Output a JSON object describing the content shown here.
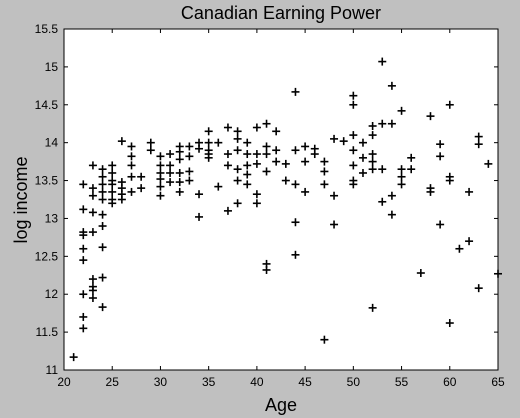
{
  "chart_data": {
    "type": "scatter",
    "title": "Canadian Earning Power",
    "xlabel": "Age",
    "ylabel": "log income",
    "xlim": [
      20,
      65
    ],
    "ylim": [
      11,
      15.5
    ],
    "xticks": [
      "20",
      "25",
      "30",
      "35",
      "40",
      "45",
      "50",
      "55",
      "60",
      "65"
    ],
    "yticks": [
      "11",
      "11.5",
      "12",
      "12.5",
      "13",
      "13.5",
      "14",
      "14.5",
      "15",
      "15.5"
    ],
    "marker": "+",
    "background": "#c0c0c0",
    "plot_background": "#ffffff",
    "marker_color": "#000000",
    "grid": false,
    "points": [
      {
        "x": 21,
        "y": 11.17
      },
      {
        "x": 22,
        "y": 11.55
      },
      {
        "x": 22,
        "y": 11.7
      },
      {
        "x": 22,
        "y": 12.0
      },
      {
        "x": 22,
        "y": 12.45
      },
      {
        "x": 22,
        "y": 12.6
      },
      {
        "x": 22,
        "y": 12.78
      },
      {
        "x": 22,
        "y": 12.82
      },
      {
        "x": 22,
        "y": 13.12
      },
      {
        "x": 22,
        "y": 13.45
      },
      {
        "x": 23,
        "y": 11.95
      },
      {
        "x": 23,
        "y": 12.05
      },
      {
        "x": 23,
        "y": 12.1
      },
      {
        "x": 23,
        "y": 12.2
      },
      {
        "x": 23,
        "y": 12.82
      },
      {
        "x": 23,
        "y": 13.08
      },
      {
        "x": 23,
        "y": 13.3
      },
      {
        "x": 23,
        "y": 13.4
      },
      {
        "x": 23,
        "y": 13.7
      },
      {
        "x": 24,
        "y": 11.83
      },
      {
        "x": 24,
        "y": 12.22
      },
      {
        "x": 24,
        "y": 12.62
      },
      {
        "x": 24,
        "y": 12.9
      },
      {
        "x": 24,
        "y": 13.05
      },
      {
        "x": 24,
        "y": 13.25
      },
      {
        "x": 24,
        "y": 13.35
      },
      {
        "x": 24,
        "y": 13.45
      },
      {
        "x": 24,
        "y": 13.55
      },
      {
        "x": 24,
        "y": 13.65
      },
      {
        "x": 25,
        "y": 13.2
      },
      {
        "x": 25,
        "y": 13.25
      },
      {
        "x": 25,
        "y": 13.35
      },
      {
        "x": 25,
        "y": 13.45
      },
      {
        "x": 25,
        "y": 13.5
      },
      {
        "x": 25,
        "y": 13.6
      },
      {
        "x": 25,
        "y": 13.7
      },
      {
        "x": 26,
        "y": 13.25
      },
      {
        "x": 26,
        "y": 13.32
      },
      {
        "x": 26,
        "y": 13.4
      },
      {
        "x": 26,
        "y": 13.48
      },
      {
        "x": 26,
        "y": 14.02
      },
      {
        "x": 27,
        "y": 13.35
      },
      {
        "x": 27,
        "y": 13.55
      },
      {
        "x": 27,
        "y": 13.7
      },
      {
        "x": 27,
        "y": 13.82
      },
      {
        "x": 27,
        "y": 13.95
      },
      {
        "x": 28,
        "y": 13.4
      },
      {
        "x": 28,
        "y": 13.55
      },
      {
        "x": 29,
        "y": 13.9
      },
      {
        "x": 29,
        "y": 14.0
      },
      {
        "x": 30,
        "y": 13.3
      },
      {
        "x": 30,
        "y": 13.42
      },
      {
        "x": 30,
        "y": 13.52
      },
      {
        "x": 30,
        "y": 13.6
      },
      {
        "x": 30,
        "y": 13.7
      },
      {
        "x": 30,
        "y": 13.82
      },
      {
        "x": 31,
        "y": 13.48
      },
      {
        "x": 31,
        "y": 13.6
      },
      {
        "x": 31,
        "y": 13.7
      },
      {
        "x": 31,
        "y": 13.85
      },
      {
        "x": 32,
        "y": 13.35
      },
      {
        "x": 32,
        "y": 13.48
      },
      {
        "x": 32,
        "y": 13.6
      },
      {
        "x": 32,
        "y": 13.78
      },
      {
        "x": 32,
        "y": 13.88
      },
      {
        "x": 32,
        "y": 13.95
      },
      {
        "x": 33,
        "y": 13.5
      },
      {
        "x": 33,
        "y": 13.62
      },
      {
        "x": 33,
        "y": 13.82
      },
      {
        "x": 33,
        "y": 13.95
      },
      {
        "x": 34,
        "y": 13.02
      },
      {
        "x": 34,
        "y": 13.32
      },
      {
        "x": 34,
        "y": 13.92
      },
      {
        "x": 34,
        "y": 14.0
      },
      {
        "x": 35,
        "y": 13.8
      },
      {
        "x": 35,
        "y": 13.85
      },
      {
        "x": 35,
        "y": 13.9
      },
      {
        "x": 35,
        "y": 14.0
      },
      {
        "x": 35,
        "y": 14.15
      },
      {
        "x": 36,
        "y": 13.42
      },
      {
        "x": 36,
        "y": 14.0
      },
      {
        "x": 37,
        "y": 13.1
      },
      {
        "x": 37,
        "y": 13.7
      },
      {
        "x": 37,
        "y": 13.85
      },
      {
        "x": 37,
        "y": 14.2
      },
      {
        "x": 38,
        "y": 13.2
      },
      {
        "x": 38,
        "y": 13.5
      },
      {
        "x": 38,
        "y": 13.65
      },
      {
        "x": 38,
        "y": 13.9
      },
      {
        "x": 38,
        "y": 14.05
      },
      {
        "x": 38,
        "y": 14.15
      },
      {
        "x": 39,
        "y": 13.45
      },
      {
        "x": 39,
        "y": 13.58
      },
      {
        "x": 39,
        "y": 13.7
      },
      {
        "x": 39,
        "y": 13.85
      },
      {
        "x": 39,
        "y": 14.0
      },
      {
        "x": 40,
        "y": 13.2
      },
      {
        "x": 40,
        "y": 13.32
      },
      {
        "x": 40,
        "y": 13.72
      },
      {
        "x": 40,
        "y": 13.85
      },
      {
        "x": 40,
        "y": 14.2
      },
      {
        "x": 41,
        "y": 12.32
      },
      {
        "x": 41,
        "y": 12.4
      },
      {
        "x": 41,
        "y": 13.62
      },
      {
        "x": 41,
        "y": 13.85
      },
      {
        "x": 41,
        "y": 13.95
      },
      {
        "x": 41,
        "y": 14.25
      },
      {
        "x": 42,
        "y": 13.75
      },
      {
        "x": 42,
        "y": 13.9
      },
      {
        "x": 42,
        "y": 14.15
      },
      {
        "x": 43,
        "y": 13.5
      },
      {
        "x": 43,
        "y": 13.72
      },
      {
        "x": 44,
        "y": 12.52
      },
      {
        "x": 44,
        "y": 12.95
      },
      {
        "x": 44,
        "y": 13.45
      },
      {
        "x": 44,
        "y": 13.9
      },
      {
        "x": 44,
        "y": 14.67
      },
      {
        "x": 45,
        "y": 13.35
      },
      {
        "x": 45,
        "y": 13.75
      },
      {
        "x": 45,
        "y": 13.95
      },
      {
        "x": 46,
        "y": 13.85
      },
      {
        "x": 46,
        "y": 13.92
      },
      {
        "x": 47,
        "y": 11.4
      },
      {
        "x": 47,
        "y": 13.45
      },
      {
        "x": 47,
        "y": 13.62
      },
      {
        "x": 47,
        "y": 13.75
      },
      {
        "x": 48,
        "y": 12.92
      },
      {
        "x": 48,
        "y": 13.3
      },
      {
        "x": 48,
        "y": 14.05
      },
      {
        "x": 49,
        "y": 14.02
      },
      {
        "x": 50,
        "y": 13.45
      },
      {
        "x": 50,
        "y": 13.5
      },
      {
        "x": 50,
        "y": 13.7
      },
      {
        "x": 50,
        "y": 13.9
      },
      {
        "x": 50,
        "y": 14.1
      },
      {
        "x": 50,
        "y": 14.5
      },
      {
        "x": 50,
        "y": 14.62
      },
      {
        "x": 51,
        "y": 13.6
      },
      {
        "x": 51,
        "y": 13.8
      },
      {
        "x": 51,
        "y": 14.0
      },
      {
        "x": 52,
        "y": 11.82
      },
      {
        "x": 52,
        "y": 13.65
      },
      {
        "x": 52,
        "y": 13.75
      },
      {
        "x": 52,
        "y": 13.85
      },
      {
        "x": 52,
        "y": 14.1
      },
      {
        "x": 52,
        "y": 14.22
      },
      {
        "x": 53,
        "y": 13.22
      },
      {
        "x": 53,
        "y": 13.65
      },
      {
        "x": 53,
        "y": 14.25
      },
      {
        "x": 53,
        "y": 15.07
      },
      {
        "x": 54,
        "y": 13.05
      },
      {
        "x": 54,
        "y": 13.3
      },
      {
        "x": 54,
        "y": 14.25
      },
      {
        "x": 54,
        "y": 14.75
      },
      {
        "x": 55,
        "y": 13.45
      },
      {
        "x": 55,
        "y": 13.55
      },
      {
        "x": 55,
        "y": 13.65
      },
      {
        "x": 55,
        "y": 14.42
      },
      {
        "x": 56,
        "y": 13.65
      },
      {
        "x": 56,
        "y": 13.8
      },
      {
        "x": 57,
        "y": 12.28
      },
      {
        "x": 58,
        "y": 13.35
      },
      {
        "x": 58,
        "y": 13.4
      },
      {
        "x": 58,
        "y": 14.35
      },
      {
        "x": 59,
        "y": 12.92
      },
      {
        "x": 59,
        "y": 13.82
      },
      {
        "x": 59,
        "y": 13.98
      },
      {
        "x": 60,
        "y": 11.62
      },
      {
        "x": 60,
        "y": 13.5
      },
      {
        "x": 60,
        "y": 13.55
      },
      {
        "x": 60,
        "y": 14.5
      },
      {
        "x": 61,
        "y": 12.6
      },
      {
        "x": 62,
        "y": 12.7
      },
      {
        "x": 62,
        "y": 13.35
      },
      {
        "x": 63,
        "y": 12.08
      },
      {
        "x": 63,
        "y": 13.98
      },
      {
        "x": 63,
        "y": 14.08
      },
      {
        "x": 64,
        "y": 13.72
      },
      {
        "x": 65,
        "y": 12.27
      }
    ]
  }
}
